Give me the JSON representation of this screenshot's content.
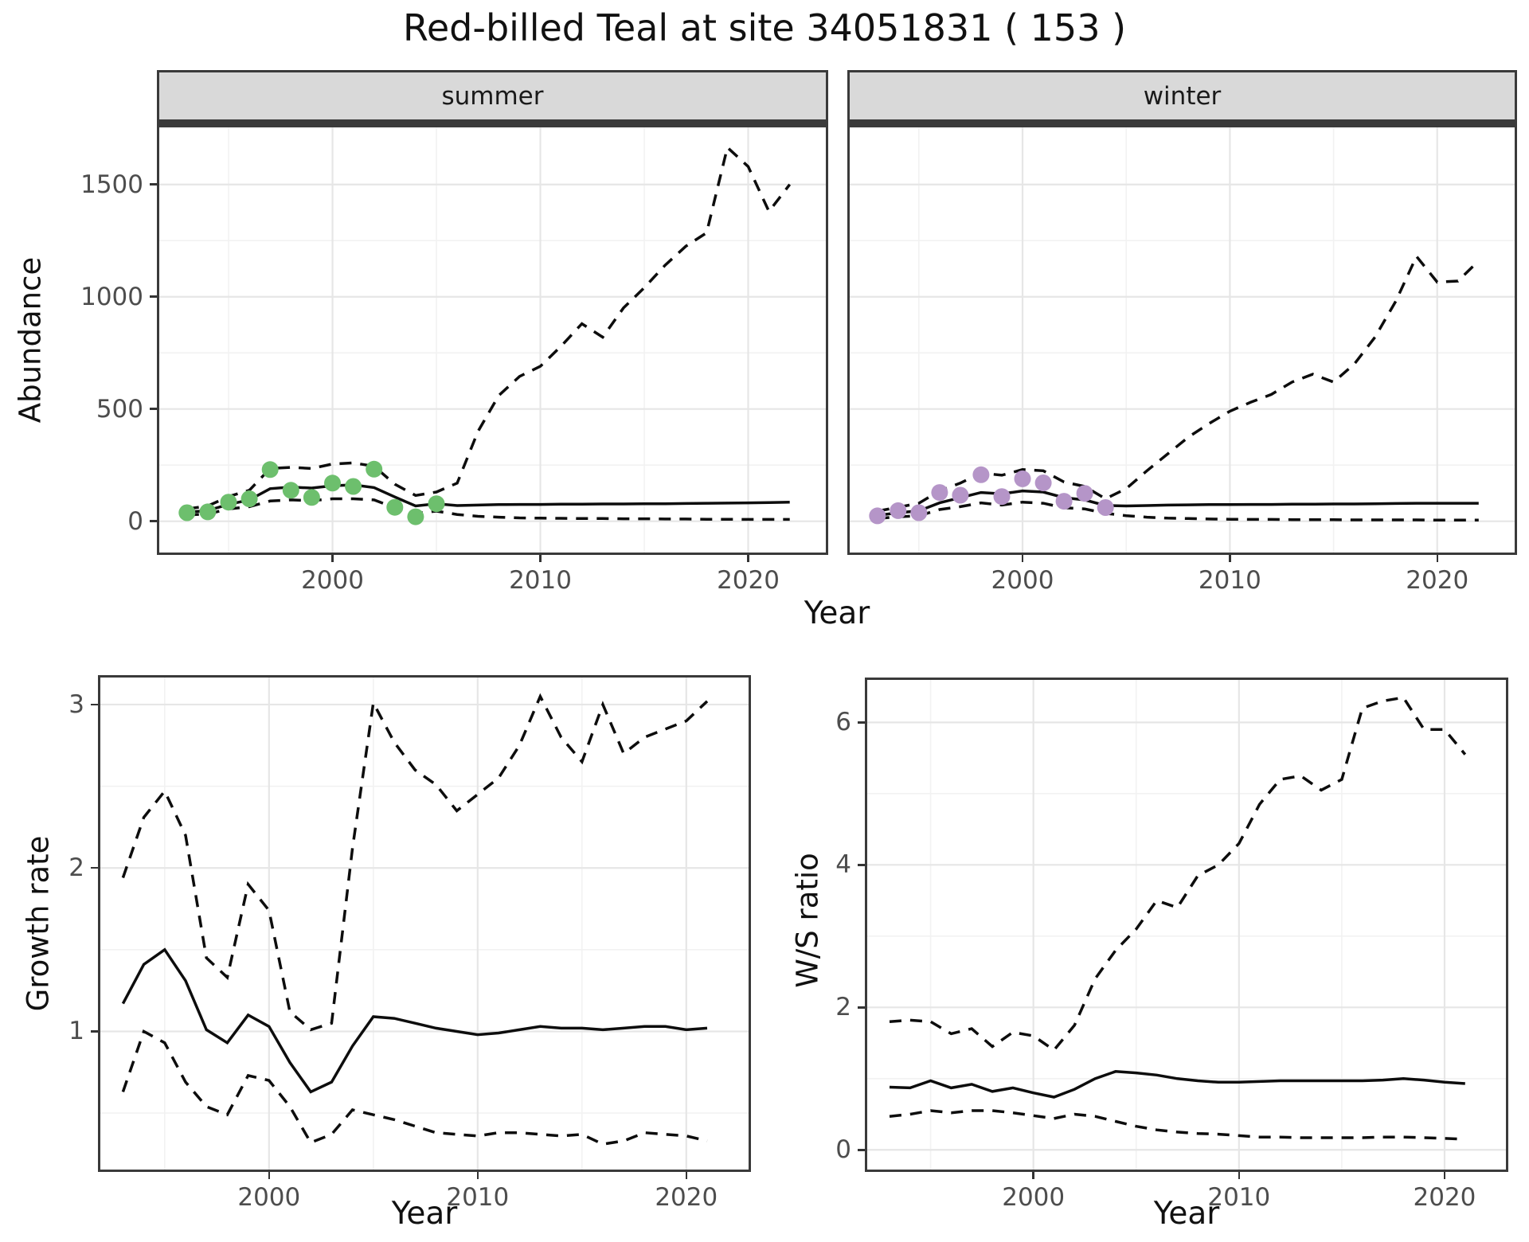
{
  "title": "Red-billed Teal at site 34051831 ( 153 )",
  "colors": {
    "summer_point": "#6dbf6d",
    "winter_point": "#b595c8",
    "line": "#0d0d0d",
    "strip_bg": "#d9d9d9",
    "grid_major": "#e6e6e6",
    "grid_minor": "#f2f2f2",
    "panel_border": "#3a3a3a",
    "tick_text": "#4d4d4d"
  },
  "chart_data": [
    {
      "id": "abundance-summer",
      "type": "line",
      "facet_label": "summer",
      "xlabel": "Year",
      "ylabel": "Abundance",
      "xlim": [
        1991.55,
        2023.85
      ],
      "ylim": [
        -150,
        1765
      ],
      "xticks": [
        2000,
        2010,
        2020
      ],
      "xtick_labels": [
        "2000",
        "2010",
        "2020"
      ],
      "xticks_minor": [
        1995,
        2005,
        2015
      ],
      "yticks": [
        0,
        500,
        1000,
        1500
      ],
      "ytick_labels": [
        "0",
        "500",
        "1000",
        "1500"
      ],
      "yticks_minor": [
        250,
        750,
        1250,
        1750
      ],
      "x": [
        1993,
        1994,
        1995,
        1996,
        1997,
        1998,
        1999,
        2000,
        2001,
        2002,
        2003,
        2004,
        2005,
        2006,
        2007,
        2008,
        2009,
        2010,
        2011,
        2012,
        2013,
        2014,
        2015,
        2016,
        2017,
        2018,
        2019,
        2020,
        2021,
        2022
      ],
      "series": [
        {
          "name": "lower-95-quantile",
          "style": "dashed",
          "values": [
            28,
            32,
            55,
            65,
            90,
            95,
            92,
            100,
            100,
            95,
            60,
            35,
            45,
            30,
            22,
            18,
            15,
            14,
            13,
            12,
            12,
            11,
            11,
            10,
            10,
            9,
            9,
            8,
            8,
            8
          ]
        },
        {
          "name": "upper-95-quantile",
          "style": "dashed",
          "values": [
            55,
            68,
            110,
            138,
            235,
            240,
            235,
            255,
            260,
            245,
            165,
            115,
            130,
            170,
            400,
            560,
            645,
            690,
            780,
            880,
            820,
            950,
            1040,
            1140,
            1225,
            1285,
            1665,
            1580,
            1380,
            1500
          ]
        },
        {
          "name": "median",
          "style": "solid",
          "values": [
            40,
            48,
            75,
            95,
            145,
            152,
            148,
            158,
            162,
            150,
            108,
            68,
            78,
            70,
            72,
            74,
            75,
            75,
            76,
            76,
            77,
            77,
            78,
            78,
            79,
            80,
            81,
            82,
            83,
            85
          ]
        }
      ],
      "points": {
        "name": "observed-summer-counts",
        "color": "#6dbf6d",
        "x": [
          1993,
          1994,
          1995,
          1996,
          1997,
          1998,
          1999,
          2000,
          2001,
          2002,
          2003,
          2004,
          2005
        ],
        "y": [
          38,
          42,
          85,
          100,
          230,
          138,
          106,
          170,
          155,
          232,
          62,
          20,
          78
        ]
      }
    },
    {
      "id": "abundance-winter",
      "type": "line",
      "facet_label": "winter",
      "xlabel": "Year",
      "ylabel": "Abundance",
      "xlim": [
        1991.55,
        2023.85
      ],
      "ylim": [
        -150,
        1765
      ],
      "xticks": [
        2000,
        2010,
        2020
      ],
      "xtick_labels": [
        "2000",
        "2010",
        "2020"
      ],
      "xticks_minor": [
        1995,
        2005,
        2015
      ],
      "yticks": [
        0,
        500,
        1000,
        1500
      ],
      "ytick_labels": [
        "0",
        "500",
        "1000",
        "1500"
      ],
      "yticks_minor": [
        250,
        750,
        1250,
        1750
      ],
      "x": [
        1993,
        1994,
        1995,
        1996,
        1997,
        1998,
        1999,
        2000,
        2001,
        2002,
        2003,
        2004,
        2005,
        2006,
        2007,
        2008,
        2009,
        2010,
        2011,
        2012,
        2013,
        2014,
        2015,
        2016,
        2017,
        2018,
        2019,
        2020,
        2021,
        2022
      ],
      "series": [
        {
          "name": "lower-95-quantile",
          "style": "dashed",
          "values": [
            12,
            20,
            24,
            52,
            65,
            82,
            72,
            85,
            80,
            60,
            55,
            35,
            25,
            18,
            14,
            12,
            10,
            9,
            8,
            8,
            7,
            7,
            7,
            6,
            6,
            6,
            6,
            5,
            5,
            5
          ]
        },
        {
          "name": "upper-95-quantile",
          "style": "dashed",
          "values": [
            45,
            62,
            80,
            135,
            170,
            215,
            205,
            230,
            225,
            175,
            155,
            100,
            145,
            225,
            300,
            375,
            435,
            490,
            530,
            565,
            620,
            655,
            620,
            700,
            820,
            980,
            1180,
            1065,
            1070,
            1160
          ]
        },
        {
          "name": "median",
          "style": "solid",
          "values": [
            26,
            38,
            46,
            82,
            105,
            128,
            122,
            135,
            130,
            105,
            95,
            70,
            68,
            70,
            72,
            73,
            74,
            74,
            75,
            75,
            76,
            76,
            77,
            77,
            78,
            79,
            80,
            80,
            80,
            80
          ]
        }
      ],
      "points": {
        "name": "observed-winter-counts",
        "color": "#b595c8",
        "x": [
          1993,
          1994,
          1995,
          1996,
          1997,
          1998,
          1999,
          2000,
          2001,
          2002,
          2003,
          2004
        ],
        "y": [
          24,
          47,
          38,
          128,
          116,
          207,
          110,
          189,
          171,
          89,
          124,
          61
        ]
      }
    },
    {
      "id": "growth-rate",
      "type": "line",
      "facet_label": "",
      "xlabel": "Year",
      "ylabel": "Growth rate",
      "xlim": [
        1991.8,
        2023.1
      ],
      "ylim": [
        0.14,
        3.18
      ],
      "xticks": [
        2000,
        2010,
        2020
      ],
      "xtick_labels": [
        "2000",
        "2010",
        "2020"
      ],
      "xticks_minor": [
        1995,
        2005,
        2015
      ],
      "yticks": [
        1,
        2,
        3
      ],
      "ytick_labels": [
        "1",
        "2",
        "3"
      ],
      "yticks_minor": [
        0.5,
        1.5,
        2.5
      ],
      "x": [
        1993,
        1994,
        1995,
        1996,
        1997,
        1998,
        1999,
        2000,
        2001,
        2002,
        2003,
        2004,
        2005,
        2006,
        2007,
        2008,
        2009,
        2010,
        2011,
        2012,
        2013,
        2014,
        2015,
        2016,
        2017,
        2018,
        2019,
        2020,
        2021
      ],
      "series": [
        {
          "name": "lower-95-quantile",
          "style": "dashed",
          "values": [
            0.63,
            1.0,
            0.93,
            0.69,
            0.54,
            0.49,
            0.73,
            0.7,
            0.54,
            0.32,
            0.37,
            0.52,
            0.49,
            0.46,
            0.42,
            0.38,
            0.37,
            0.36,
            0.38,
            0.38,
            0.37,
            0.36,
            0.37,
            0.31,
            0.33,
            0.38,
            0.37,
            0.36,
            0.33
          ]
        },
        {
          "name": "upper-95-quantile",
          "style": "dashed",
          "values": [
            1.94,
            2.31,
            2.47,
            2.2,
            1.45,
            1.33,
            1.9,
            1.74,
            1.12,
            1.01,
            1.05,
            2.12,
            3.01,
            2.77,
            2.6,
            2.51,
            2.35,
            2.45,
            2.55,
            2.75,
            3.05,
            2.8,
            2.65,
            3.0,
            2.7,
            2.8,
            2.85,
            2.9,
            3.02
          ]
        },
        {
          "name": "median",
          "style": "solid",
          "values": [
            1.17,
            1.41,
            1.5,
            1.31,
            1.01,
            0.93,
            1.1,
            1.03,
            0.81,
            0.63,
            0.69,
            0.91,
            1.09,
            1.08,
            1.05,
            1.02,
            1.0,
            0.98,
            0.99,
            1.01,
            1.03,
            1.02,
            1.02,
            1.01,
            1.02,
            1.03,
            1.03,
            1.01,
            1.02
          ]
        }
      ],
      "points": null
    },
    {
      "id": "ws-ratio",
      "type": "line",
      "facet_label": "",
      "xlabel": "Year",
      "ylabel": "W/S ratio",
      "xlim": [
        1991.8,
        2023.1
      ],
      "ylim": [
        -0.31,
        6.63
      ],
      "xticks": [
        2000,
        2010,
        2020
      ],
      "xtick_labels": [
        "2000",
        "2010",
        "2020"
      ],
      "xticks_minor": [
        1995,
        2005,
        2015
      ],
      "yticks": [
        0,
        2,
        4,
        6
      ],
      "ytick_labels": [
        "0",
        "2",
        "4",
        "6"
      ],
      "yticks_minor": [
        1,
        3,
        5
      ],
      "x": [
        1993,
        1994,
        1995,
        1996,
        1997,
        1998,
        1999,
        2000,
        2001,
        2002,
        2003,
        2004,
        2005,
        2006,
        2007,
        2008,
        2009,
        2010,
        2011,
        2012,
        2013,
        2014,
        2015,
        2016,
        2017,
        2018,
        2019,
        2020,
        2021
      ],
      "series": [
        {
          "name": "lower-95-quantile",
          "style": "dashed",
          "values": [
            0.47,
            0.5,
            0.55,
            0.52,
            0.55,
            0.55,
            0.52,
            0.48,
            0.44,
            0.5,
            0.47,
            0.4,
            0.33,
            0.28,
            0.25,
            0.23,
            0.22,
            0.2,
            0.18,
            0.18,
            0.17,
            0.17,
            0.17,
            0.17,
            0.18,
            0.18,
            0.17,
            0.16,
            0.15
          ]
        },
        {
          "name": "upper-95-quantile",
          "style": "dashed",
          "values": [
            1.8,
            1.82,
            1.8,
            1.63,
            1.7,
            1.45,
            1.65,
            1.6,
            1.4,
            1.75,
            2.4,
            2.8,
            3.1,
            3.5,
            3.4,
            3.85,
            4.0,
            4.3,
            4.85,
            5.2,
            5.25,
            5.05,
            5.2,
            6.2,
            6.3,
            6.35,
            5.9,
            5.9,
            5.55
          ]
        },
        {
          "name": "median",
          "style": "solid",
          "values": [
            0.88,
            0.87,
            0.97,
            0.87,
            0.92,
            0.82,
            0.87,
            0.8,
            0.74,
            0.85,
            1.0,
            1.1,
            1.08,
            1.05,
            1.0,
            0.97,
            0.95,
            0.95,
            0.96,
            0.97,
            0.97,
            0.97,
            0.97,
            0.97,
            0.98,
            1.0,
            0.98,
            0.95,
            0.93
          ]
        }
      ],
      "points": null
    }
  ]
}
